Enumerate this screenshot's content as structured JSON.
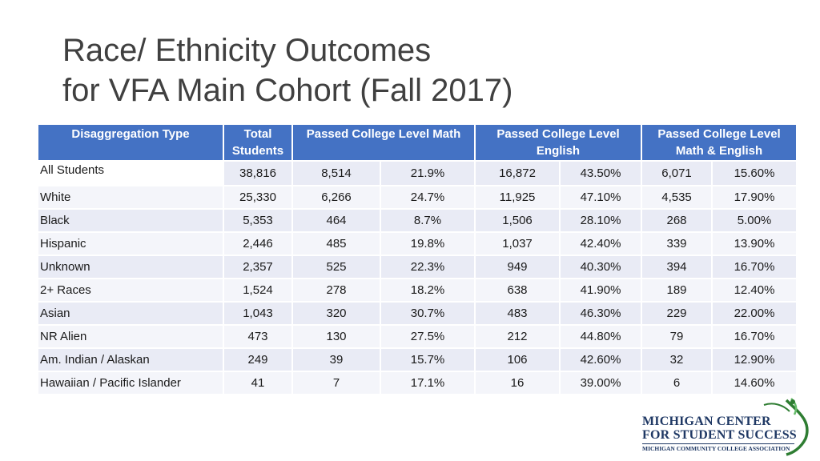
{
  "title": {
    "line1": "Race/ Ethnicity Outcomes",
    "line2": "for VFA Main Cohort (Fall 2017)"
  },
  "table": {
    "headers": {
      "type": "Disaggregation Type",
      "total": "Total Students",
      "math": "Passed College Level Math",
      "english": "Passed College Level English",
      "both": "Passed College Level Math & English"
    },
    "rows": [
      {
        "label": "All Students",
        "total": "38,816",
        "math_n": "8,514",
        "math_pct": "21.9%",
        "eng_n": "16,872",
        "eng_pct": "43.50%",
        "both_n": "6,071",
        "both_pct": "15.60%"
      },
      {
        "label": "White",
        "total": "25,330",
        "math_n": "6,266",
        "math_pct": "24.7%",
        "eng_n": "11,925",
        "eng_pct": "47.10%",
        "both_n": "4,535",
        "both_pct": "17.90%"
      },
      {
        "label": "Black",
        "total": "5,353",
        "math_n": "464",
        "math_pct": "8.7%",
        "eng_n": "1,506",
        "eng_pct": "28.10%",
        "both_n": "268",
        "both_pct": "5.00%"
      },
      {
        "label": "Hispanic",
        "total": "2,446",
        "math_n": "485",
        "math_pct": "19.8%",
        "eng_n": "1,037",
        "eng_pct": "42.40%",
        "both_n": "339",
        "both_pct": "13.90%"
      },
      {
        "label": "Unknown",
        "total": "2,357",
        "math_n": "525",
        "math_pct": "22.3%",
        "eng_n": "949",
        "eng_pct": "40.30%",
        "both_n": "394",
        "both_pct": "16.70%"
      },
      {
        "label": "2+ Races",
        "total": "1,524",
        "math_n": "278",
        "math_pct": "18.2%",
        "eng_n": "638",
        "eng_pct": "41.90%",
        "both_n": "189",
        "both_pct": "12.40%"
      },
      {
        "label": "Asian",
        "total": "1,043",
        "math_n": "320",
        "math_pct": "30.7%",
        "eng_n": "483",
        "eng_pct": "46.30%",
        "both_n": "229",
        "both_pct": "22.00%"
      },
      {
        "label": "NR Alien",
        "total": "473",
        "math_n": "130",
        "math_pct": "27.5%",
        "eng_n": "212",
        "eng_pct": "44.80%",
        "both_n": "79",
        "both_pct": "16.70%"
      },
      {
        "label": "Am. Indian / Alaskan",
        "total": "249",
        "math_n": "39",
        "math_pct": "15.7%",
        "eng_n": "106",
        "eng_pct": "42.60%",
        "both_n": "32",
        "both_pct": "12.90%"
      },
      {
        "label": "Hawaiian / Pacific Islander",
        "total": "41",
        "math_n": "7",
        "math_pct": "17.1%",
        "eng_n": "16",
        "eng_pct": "39.00%",
        "both_n": "6",
        "both_pct": "14.60%"
      }
    ]
  },
  "logo": {
    "line1": "MICHIGAN CENTER",
    "line2": "FOR STUDENT SUCCESS",
    "line3": "MICHIGAN COMMUNITY COLLEGE ASSOCIATION"
  },
  "colors": {
    "header_bg": "#4472c4",
    "row_band_dark": "#e9ebf5",
    "row_band_light": "#f4f5fa",
    "title_text": "#404040",
    "logo_navy": "#1f3864",
    "logo_green": "#2e7d32"
  }
}
